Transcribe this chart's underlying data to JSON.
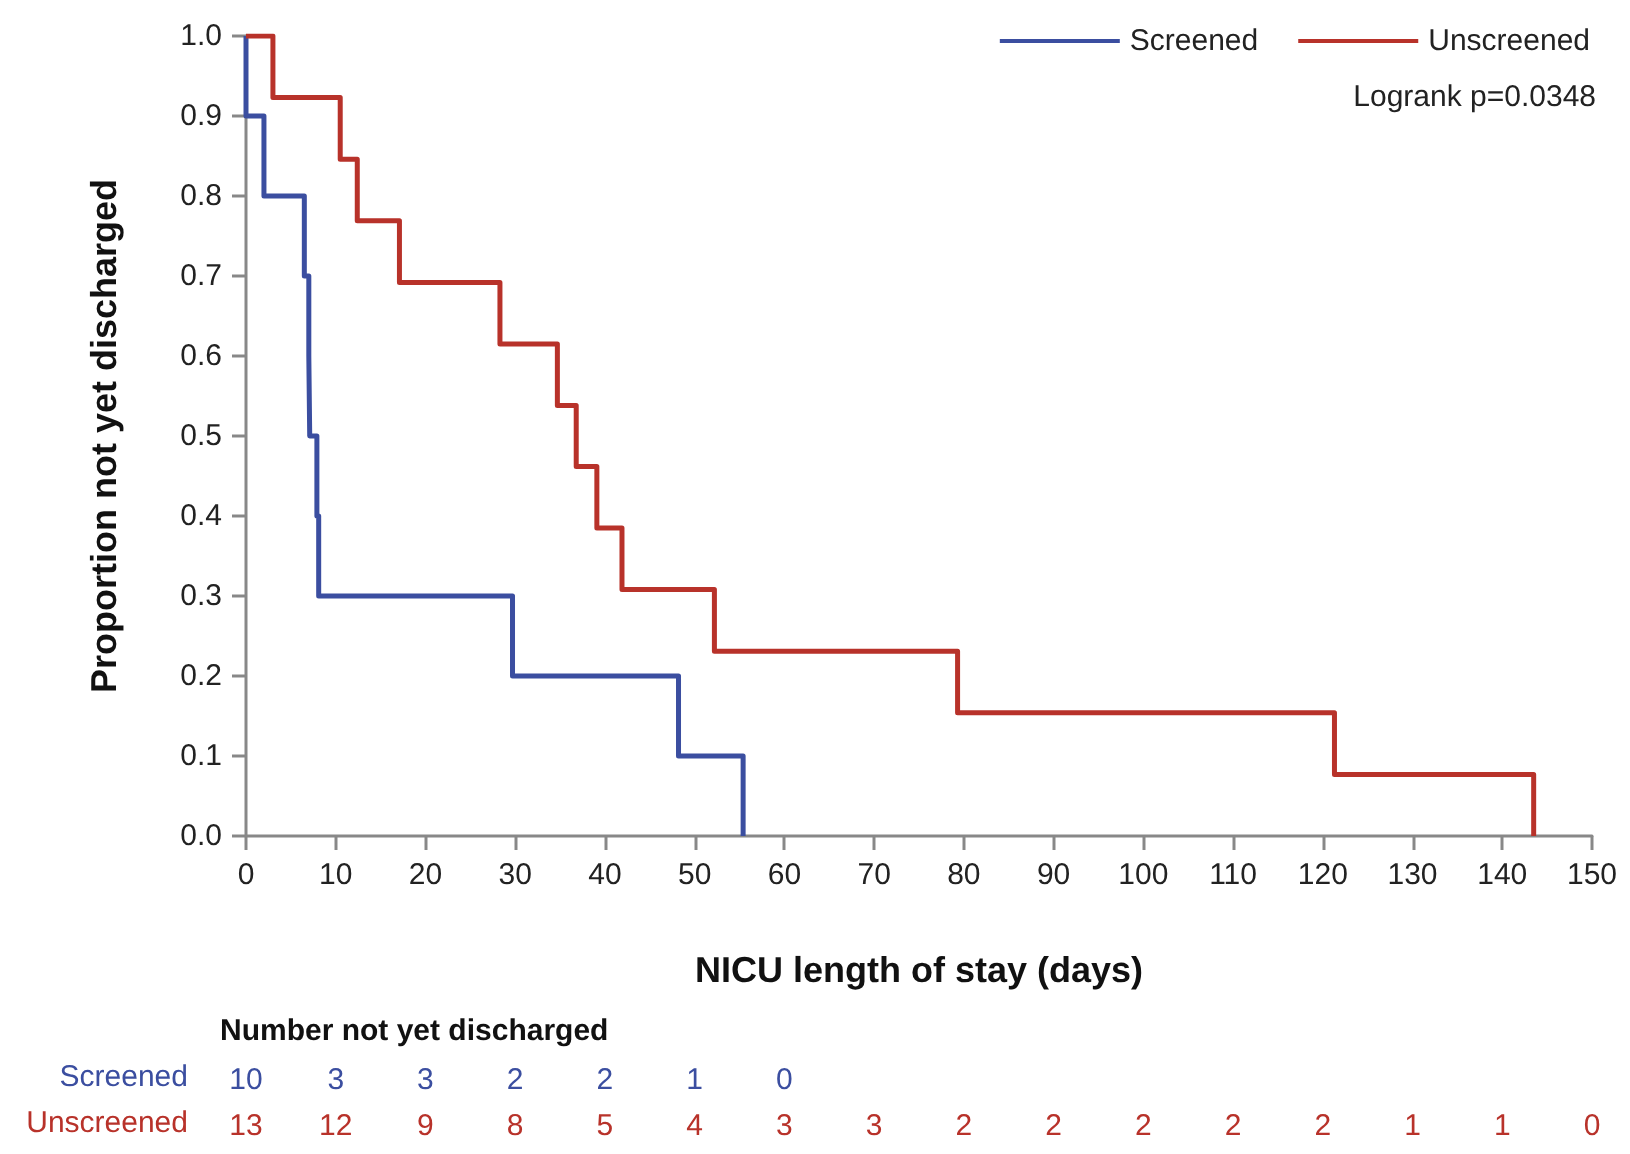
{
  "chart_data": {
    "type": "step",
    "subtitle": "Logrank p=0.0348",
    "xlabel": "NICU length of stay (days)",
    "ylabel": "Proportion not yet discharged",
    "xlim": [
      0,
      150
    ],
    "xticks": [
      0,
      10,
      20,
      30,
      40,
      50,
      60,
      70,
      80,
      90,
      100,
      110,
      120,
      130,
      140,
      150
    ],
    "ylim": [
      0,
      1
    ],
    "yticks": [
      {
        "value": 0,
        "label": "0.0"
      },
      {
        "value": 0.1,
        "label": "0.1"
      },
      {
        "value": 0.2,
        "label": "0.2"
      },
      {
        "value": 0.3,
        "label": "0.3"
      },
      {
        "value": 0.4,
        "label": "0.4"
      },
      {
        "value": 0.5,
        "label": "0.5"
      },
      {
        "value": 0.6,
        "label": "0.6"
      },
      {
        "value": 0.7,
        "label": "0.7"
      },
      {
        "value": 0.8,
        "label": "0.8"
      },
      {
        "value": 0.9,
        "label": "0.9"
      },
      {
        "value": 1,
        "label": "1.0"
      }
    ],
    "grid": false,
    "legend": "top right",
    "marker": "none",
    "line_style": "solid",
    "series": [
      {
        "name": "Screened",
        "color": "#3b4ea0",
        "x": [
          0,
          0,
          2,
          6.5,
          7,
          7.1,
          7.9,
          8.1,
          29.7,
          48.2,
          55.4
        ],
        "values": [
          1,
          0.9,
          0.8,
          0.7,
          0.6,
          0.5,
          0.4,
          0.3,
          0.2,
          0.1,
          0
        ]
      },
      {
        "name": "Unscreened",
        "color": "#b8322a",
        "x": [
          0,
          3,
          10.5,
          12.4,
          17.1,
          28.3,
          34.7,
          36.8,
          39.1,
          41.9,
          52.2,
          79.3,
          121.3,
          143.5
        ],
        "values": [
          1,
          0.923,
          0.846,
          0.769,
          0.692,
          0.615,
          0.538,
          0.462,
          0.385,
          0.308,
          0.231,
          0.154,
          0.077,
          0
        ]
      }
    ],
    "annotations": [
      "Number not yet discharged",
      "Screened",
      "10",
      "3",
      "3",
      "2",
      "2",
      "1",
      "0",
      "Unscreened",
      "13",
      "12",
      "9",
      "8",
      "5",
      "4",
      "3",
      "3",
      "2",
      "2",
      "2",
      "2",
      "2",
      "1",
      "1",
      "0"
    ]
  }
}
